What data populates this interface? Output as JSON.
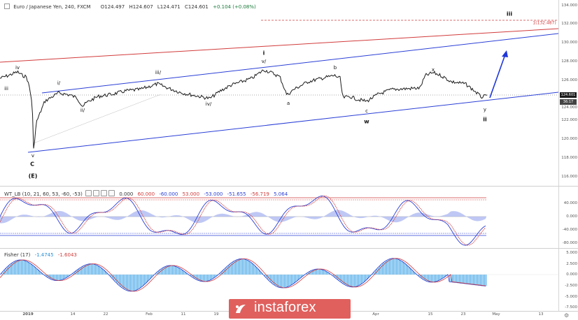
{
  "header": {
    "symbol": "Euro / Japanese Yen, 240, FXCM",
    "open": "O124.497",
    "high": "H124.607",
    "low": "L124.471",
    "close": "C124.601",
    "change": "+0.104 (+0.08%)"
  },
  "price_axis": {
    "ticks": [
      "134.000",
      "132.000",
      "130.000",
      "128.000",
      "126.000",
      "124.000",
      "122.000",
      "120.000",
      "118.000",
      "116.000"
    ],
    "last_price": "124.601",
    "countdown": "36:17"
  },
  "wt_indicator": {
    "label": "WT_LB (10, 21, 60, 53, -60, -53)",
    "values": [
      "0.000",
      "60.000",
      "-60.000",
      "53.000",
      "-53.000",
      "-51.655",
      "-56.719",
      "5.064"
    ],
    "value_colors": [
      "#333333",
      "#d23b3b",
      "#2a3fd6",
      "#d23b3b",
      "#2a3fd6",
      "#2a3fd6",
      "#d23b3b",
      "#2a3fd6"
    ],
    "ticks": [
      "40.000",
      "0.000",
      "-40.000",
      "-80.000"
    ]
  },
  "fisher_indicator": {
    "label": "Fisher (17)",
    "values": [
      "-1.4745",
      "-1.6043"
    ],
    "value_colors": [
      "#2a8fd6",
      "#d23b3b"
    ],
    "ticks": [
      "5.000",
      "2.500",
      "0.000",
      "-2.500",
      "-5.000",
      "-7.500"
    ]
  },
  "time_axis": [
    "2019",
    "14",
    "22",
    "Feb",
    "11",
    "19",
    "Apr",
    "15",
    "23",
    "May",
    "13"
  ],
  "wave_labels": [
    "iv",
    "iii",
    "i/",
    "iii/",
    "ii/",
    "iv/",
    "v/",
    "i",
    "a",
    "b",
    "c",
    "x",
    "w",
    "y",
    "ii",
    "iii",
    "v",
    "C",
    "(E)"
  ],
  "target_label": "(132.487)",
  "watermark": "instaforex",
  "colors": {
    "up_line": "#d23b3b",
    "channel": "#2a3fd6",
    "price": "#1b1b1b",
    "histogram": "#4aa8e8",
    "fast": "#d23b3b"
  },
  "icons": [
    "settings-gear-icon",
    "instaforex-logo-icon",
    "chevron-down-icon"
  ]
}
